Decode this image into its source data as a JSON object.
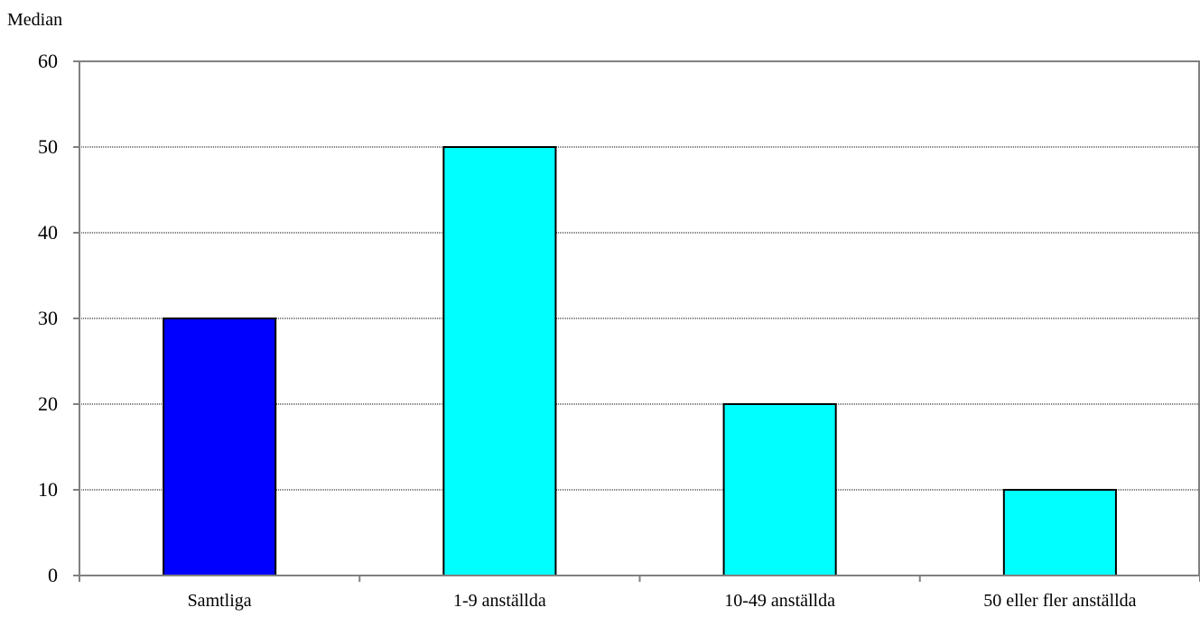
{
  "chart_data": {
    "type": "bar",
    "ylabel": "Median",
    "categories": [
      "Samtliga",
      "1-9 anställda",
      "10-49 anställda",
      "50 eller fler anställda"
    ],
    "values": [
      30,
      50,
      20,
      10
    ],
    "ylim": [
      0,
      60
    ],
    "yticks": [
      0,
      10,
      20,
      30,
      40,
      50,
      60
    ],
    "grid": true,
    "colors": [
      "#0000FF",
      "#00FFFF",
      "#00FFFF",
      "#00FFFF"
    ]
  }
}
